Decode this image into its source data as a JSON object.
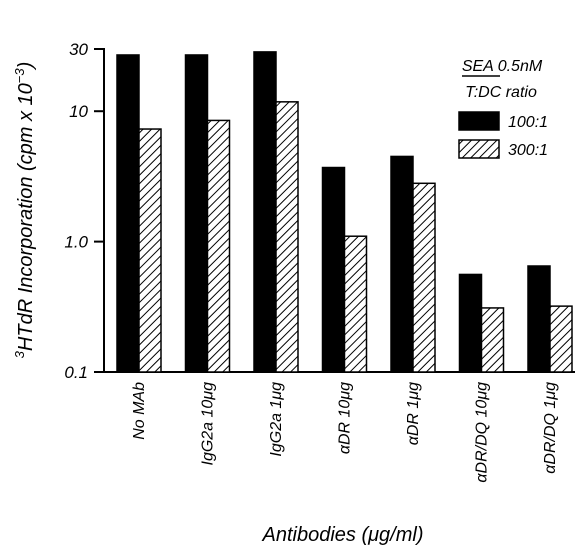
{
  "chart_data": {
    "type": "bar",
    "scale": "log",
    "ylim": [
      0.1,
      30
    ],
    "yticks": [
      {
        "value": 30,
        "label": "30"
      },
      {
        "value": 10,
        "label": "10"
      },
      {
        "value": 1,
        "label": "1.0"
      },
      {
        "value": 0.1,
        "label": "0.1"
      }
    ],
    "categories": [
      "No MAb",
      "IgG2a 10μg",
      "IgG2a 1μg",
      "αDR 10μg",
      "αDR 1μg",
      "αDR/DQ 10μg",
      "αDR/DQ 1μg"
    ],
    "series": [
      {
        "name": "100:1",
        "fill": "solid",
        "color": "#000000",
        "values": [
          27,
          27,
          28.5,
          3.7,
          4.5,
          0.56,
          0.65
        ]
      },
      {
        "name": "300:1",
        "fill": "hatched",
        "color": "#000000",
        "values": [
          7.3,
          8.5,
          11.8,
          1.1,
          2.8,
          0.31,
          0.32
        ]
      }
    ],
    "ylabel_prefix": "3",
    "ylabel": "HTdR Incorporation (cpm x 10",
    "ylabel_exp": "−3",
    "ylabel_suffix": ")",
    "xlabel": "Antibodies (μg/ml)",
    "legend": {
      "title_line1": "SEA 0.5nM",
      "title_line2": "T:DC ratio",
      "position": "top-right"
    },
    "grid": false
  }
}
